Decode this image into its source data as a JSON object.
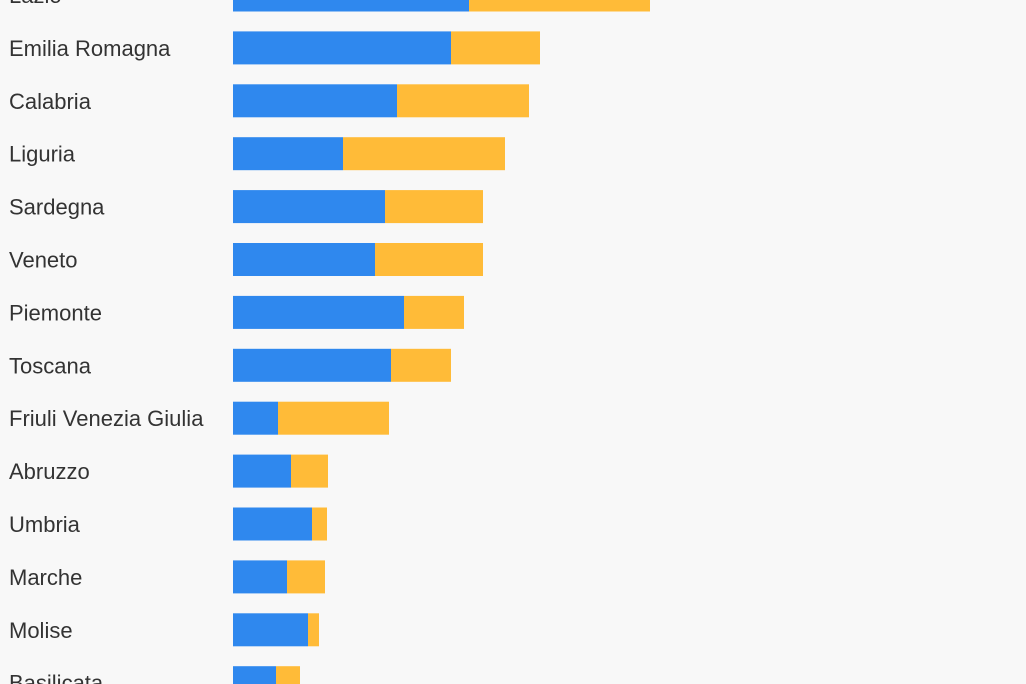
{
  "colors": {
    "background": "#f8f8f8",
    "series_1": "#2f88ee",
    "series_2": "#ffbb38",
    "label_text": "#333333"
  },
  "chart_data": {
    "type": "bar",
    "orientation": "horizontal",
    "stacked": true,
    "title": "",
    "xlabel": "",
    "ylabel": "",
    "grid": false,
    "legend": "none",
    "categories": [
      "Lazio",
      "Emilia Romagna",
      "Calabria",
      "Liguria",
      "Sardegna",
      "Veneto",
      "Piemonte",
      "Toscana",
      "Friuli Venezia Giulia",
      "Abruzzo",
      "Umbria",
      "Marche",
      "Molise",
      "Basilicata"
    ],
    "series": [
      {
        "values": [
          236,
          218,
          164,
          110,
          152,
          142,
          171,
          158,
          45,
          58,
          79,
          54,
          75,
          43
        ]
      },
      {
        "values": [
          181,
          89,
          132,
          162,
          98,
          108,
          60,
          60,
          111,
          37,
          15,
          38,
          11,
          24
        ]
      }
    ],
    "xlim": [
      0,
      793
    ]
  }
}
